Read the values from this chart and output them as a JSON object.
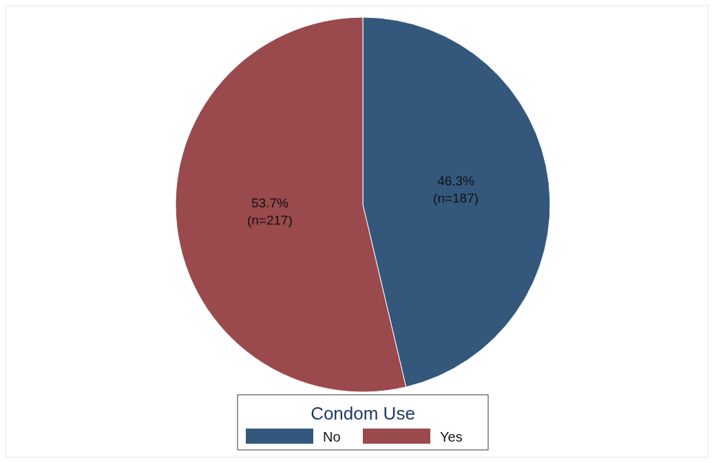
{
  "chart_data": {
    "type": "pie",
    "categories": [
      "No",
      "Yes"
    ],
    "values": [
      46.3,
      53.7
    ],
    "colors": [
      "#34587c",
      "#9a494d"
    ],
    "value_labels": [
      "46.3%\n(n=187)",
      "53.7%\n(n=217)"
    ],
    "legend": "bottom",
    "legend_title": "Condom Use"
  }
}
